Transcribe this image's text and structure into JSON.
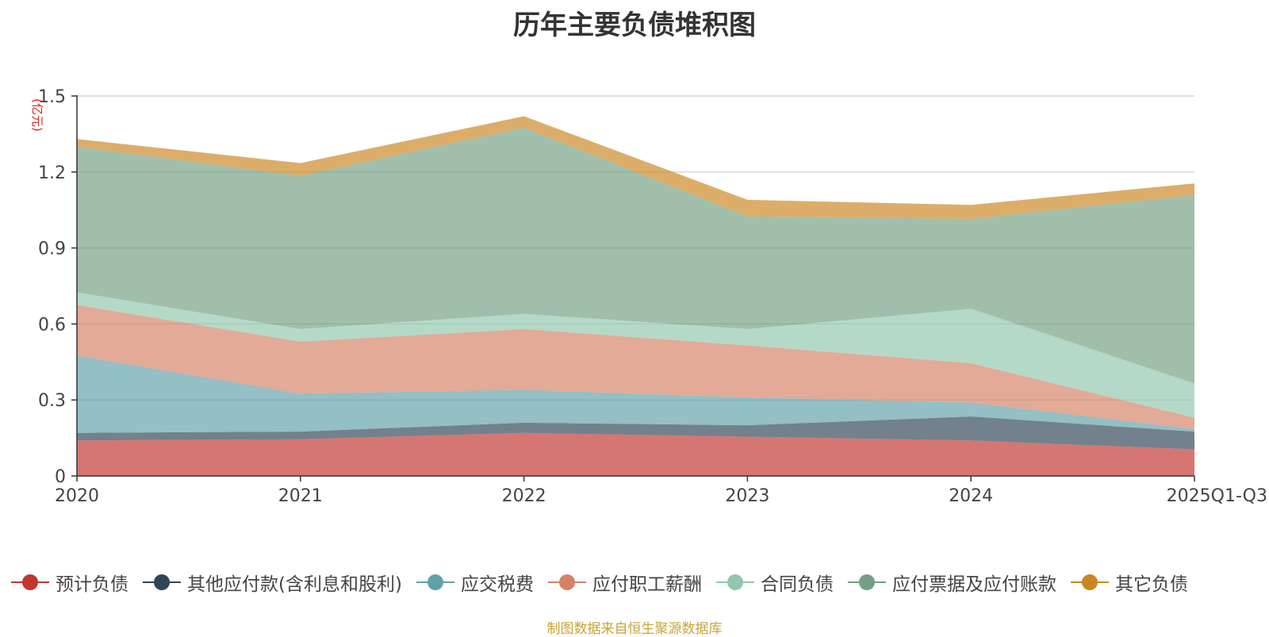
{
  "chart_data": {
    "type": "area",
    "stacked": true,
    "title": "历年主要负债堆积图",
    "unit_label": "(亿元)",
    "categories": [
      "2020",
      "2021",
      "2022",
      "2023",
      "2024",
      "2025Q1-Q3"
    ],
    "ylim": [
      0,
      1.5
    ],
    "yticks": [
      0,
      0.3,
      0.6,
      0.9,
      1.2,
      1.5
    ],
    "ytick_labels": [
      "0",
      "0.3",
      "0.6",
      "0.9",
      "1.2",
      "1.5"
    ],
    "grid": true,
    "legend_position": "bottom",
    "series": [
      {
        "name": "预计负债",
        "color": "#c23531",
        "values": [
          0.14,
          0.145,
          0.17,
          0.155,
          0.14,
          0.105
        ]
      },
      {
        "name": "其他应付款(含利息和股利)",
        "color": "#2f4554",
        "values": [
          0.03,
          0.03,
          0.04,
          0.045,
          0.095,
          0.07
        ]
      },
      {
        "name": "应交税费",
        "color": "#61a0a8",
        "values": [
          0.305,
          0.15,
          0.13,
          0.11,
          0.055,
          0.01
        ]
      },
      {
        "name": "应付职工薪酬",
        "color": "#d48265",
        "values": [
          0.2,
          0.205,
          0.24,
          0.205,
          0.155,
          0.045
        ]
      },
      {
        "name": "合同负债",
        "color": "#91c7ae",
        "values": [
          0.05,
          0.05,
          0.06,
          0.065,
          0.215,
          0.135
        ]
      },
      {
        "name": "应付票据及应付账款",
        "color": "#749f83",
        "values": [
          0.575,
          0.605,
          0.735,
          0.445,
          0.355,
          0.745
        ]
      },
      {
        "name": "其它负债",
        "color": "#ca8622",
        "values": [
          0.03,
          0.05,
          0.045,
          0.065,
          0.055,
          0.045
        ]
      }
    ],
    "source_note": "制图数据来自恒生聚源数据库"
  }
}
